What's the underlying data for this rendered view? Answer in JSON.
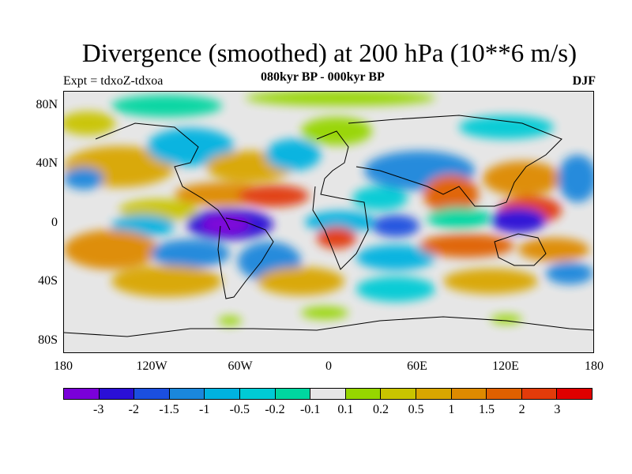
{
  "title": "Divergence (smoothed) at 200 hPa (10**6 m/s)",
  "subtitle": "080kyr BP - 000kyr BP",
  "expt_label": "Expt = tdxoZ-tdxoa",
  "season": "DJF",
  "map": {
    "projection": "cylindrical-equidistant",
    "lon_range": [
      -180,
      180
    ],
    "lat_range": [
      -90,
      90
    ],
    "background_color": "#e6e6e6",
    "y_ticks": [
      "80N",
      "40N",
      "0",
      "40S",
      "80S"
    ],
    "x_ticks": [
      "180",
      "120W",
      "60W",
      "0",
      "60E",
      "120E",
      "180"
    ]
  },
  "colorbar": {
    "colors": [
      "#7a00d9",
      "#2a0fd6",
      "#1b4fe0",
      "#1a87dc",
      "#00b2e0",
      "#00cbd5",
      "#00d6a0",
      "#e6e6e6",
      "#96d600",
      "#c9c400",
      "#d9a600",
      "#de8a00",
      "#e06000",
      "#e23b0a",
      "#e00000"
    ],
    "labels": [
      "-3",
      "-2",
      "-1.5",
      "-1",
      "-0.5",
      "-0.2",
      "-0.1",
      "0.1",
      "0.2",
      "0.5",
      "1",
      "1.5",
      "2",
      "3"
    ]
  }
}
